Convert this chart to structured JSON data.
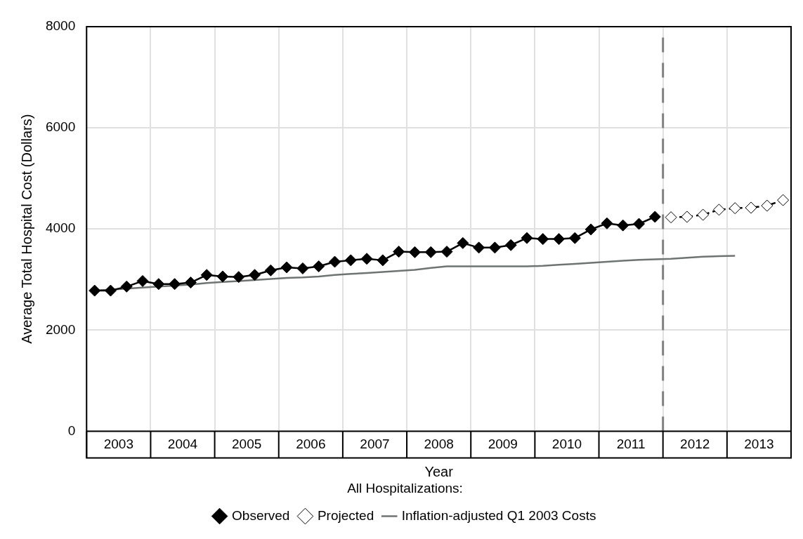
{
  "chart_data": {
    "type": "line",
    "xlabel": "Year",
    "ylabel": "Average Total Hospital Cost (Dollars)",
    "legend_title": "All Hospitalizations:",
    "legend": "bottom",
    "grid": true,
    "xlim": [
      2003,
      2014
    ],
    "xticks": [
      {
        "value": 2003,
        "label": null
      },
      {
        "value": 2003.5,
        "label": "2003"
      },
      {
        "value": 2004,
        "label": null
      },
      {
        "value": 2004.5,
        "label": "2004"
      },
      {
        "value": 2005,
        "label": null
      },
      {
        "value": 2005.5,
        "label": "2005"
      },
      {
        "value": 2006,
        "label": null
      },
      {
        "value": 2006.5,
        "label": "2006"
      },
      {
        "value": 2007,
        "label": null
      },
      {
        "value": 2007.5,
        "label": "2007"
      },
      {
        "value": 2008,
        "label": null
      },
      {
        "value": 2008.5,
        "label": "2008"
      },
      {
        "value": 2009,
        "label": null
      },
      {
        "value": 2009.5,
        "label": "2009"
      },
      {
        "value": 2010,
        "label": null
      },
      {
        "value": 2010.5,
        "label": "2010"
      },
      {
        "value": 2011,
        "label": null
      },
      {
        "value": 2011.5,
        "label": "2011"
      },
      {
        "value": 2012,
        "label": null
      },
      {
        "value": 2012.5,
        "label": "2012"
      },
      {
        "value": 2013,
        "label": null
      },
      {
        "value": 2013.5,
        "label": "2013"
      },
      {
        "value": 2014,
        "label": null
      }
    ],
    "ylim": [
      0,
      8000
    ],
    "yticks": [
      0,
      2000,
      4000,
      6000,
      8000
    ],
    "ref_lines": [
      {
        "axis": "x",
        "value": 2012,
        "color": "#808080",
        "line_style": "dashed"
      }
    ],
    "series": [
      {
        "name": "Observed",
        "type": "line",
        "color": "#000000",
        "marker": "diamond",
        "line_style": "solid",
        "x": [
          2003.125,
          2003.375,
          2003.625,
          2003.875,
          2004.125,
          2004.375,
          2004.625,
          2004.875,
          2005.125,
          2005.375,
          2005.625,
          2005.875,
          2006.125,
          2006.375,
          2006.625,
          2006.875,
          2007.125,
          2007.375,
          2007.625,
          2007.875,
          2008.125,
          2008.375,
          2008.625,
          2008.875,
          2009.125,
          2009.375,
          2009.625,
          2009.875,
          2010.125,
          2010.375,
          2010.625,
          2010.875,
          2011.125,
          2011.375,
          2011.625,
          2011.875
        ],
        "values": [
          2780,
          2780,
          2860,
          2970,
          2910,
          2910,
          2940,
          3090,
          3060,
          3050,
          3090,
          3180,
          3240,
          3220,
          3260,
          3350,
          3380,
          3410,
          3380,
          3550,
          3540,
          3540,
          3550,
          3720,
          3630,
          3630,
          3680,
          3820,
          3800,
          3800,
          3820,
          3990,
          4110,
          4070,
          4100,
          4240
        ]
      },
      {
        "name": "Projected",
        "type": "line",
        "color": "#000000",
        "marker": "diamond",
        "line_style": "dashed",
        "x": [
          2012.125,
          2012.375,
          2012.625,
          2012.875,
          2013.125,
          2013.375,
          2013.625,
          2013.875
        ],
        "values": [
          4230,
          4240,
          4280,
          4380,
          4410,
          4420,
          4460,
          4570
        ]
      },
      {
        "name": "Inflation-adjusted Q1 2003 Costs",
        "type": "line",
        "color": "#6e7472",
        "marker": "none",
        "line_style": "solid",
        "x": [
          2003.125,
          2003.375,
          2003.625,
          2003.875,
          2004.125,
          2004.375,
          2004.625,
          2004.875,
          2005.125,
          2005.375,
          2005.625,
          2005.875,
          2006.125,
          2006.375,
          2006.625,
          2006.875,
          2007.125,
          2007.375,
          2007.625,
          2007.875,
          2008.125,
          2008.375,
          2008.625,
          2008.875,
          2009.125,
          2009.375,
          2009.625,
          2009.875,
          2010.125,
          2010.375,
          2010.625,
          2010.875,
          2011.125,
          2011.375,
          2011.625,
          2011.875,
          2012.125,
          2012.375,
          2012.625,
          2012.875,
          2013.125
        ],
        "values": [
          2780,
          2800,
          2820,
          2840,
          2860,
          2880,
          2900,
          2930,
          2950,
          2970,
          2990,
          3010,
          3030,
          3040,
          3060,
          3090,
          3110,
          3130,
          3150,
          3170,
          3190,
          3230,
          3260,
          3260,
          3260,
          3260,
          3260,
          3260,
          3270,
          3290,
          3310,
          3330,
          3350,
          3370,
          3390,
          3400,
          3410,
          3430,
          3450,
          3460,
          3470
        ]
      }
    ]
  }
}
